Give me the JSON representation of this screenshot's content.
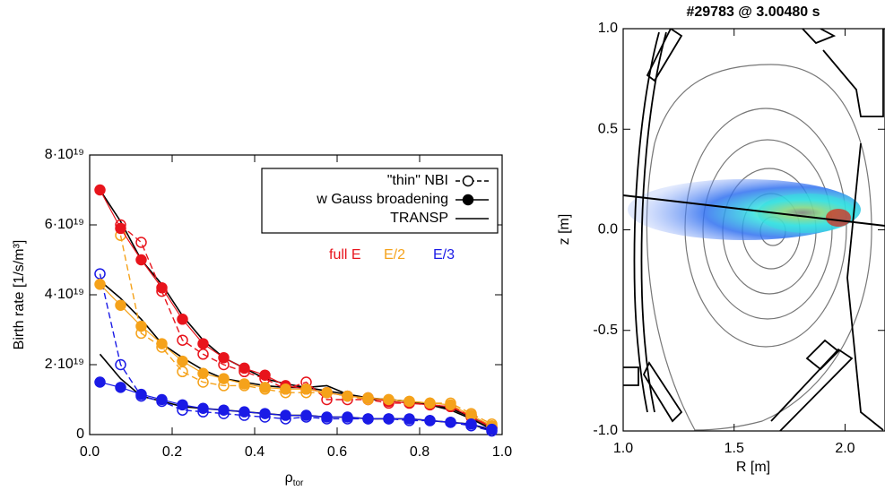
{
  "chart_data": [
    {
      "type": "line",
      "ylabel": "Birth rate [1/s/m³]",
      "xlabel": "ρ",
      "xlabel_sub": "tor",
      "xlim": [
        0,
        1
      ],
      "ylim": [
        0,
        8e+19
      ],
      "xticks": [
        {
          "value": 0,
          "label": "0.0"
        },
        0.2,
        0.4,
        0.6,
        0.8,
        {
          "value": 1,
          "label": "1.0"
        }
      ],
      "yticks": [
        0,
        {
          "value": 2e+19,
          "label": "2·10¹⁹"
        },
        {
          "value": 4e+19,
          "label": "4·10¹⁹"
        },
        {
          "value": 6e+19,
          "label": "6·10¹⁹"
        },
        {
          "value": 8e+19,
          "label": "8·10¹⁹"
        }
      ],
      "legend": [
        {
          "label": "\"thin\" NBI",
          "style": "open"
        },
        {
          "label": "w Gauss broadening",
          "style": "filled"
        },
        {
          "label": "TRANSP",
          "style": "line"
        }
      ],
      "energy_labels": [
        {
          "label": "full E",
          "color": "#e8141c"
        },
        {
          "label": "E/2",
          "color": "#f5a21a"
        },
        {
          "label": "E/3",
          "color": "#1a1ae6"
        }
      ],
      "x": [
        0.025,
        0.075,
        0.125,
        0.175,
        0.225,
        0.275,
        0.325,
        0.375,
        0.425,
        0.475,
        0.525,
        0.575,
        0.625,
        0.675,
        0.725,
        0.775,
        0.825,
        0.875,
        0.925,
        0.975
      ],
      "series": [
        {
          "style": "line",
          "color": "#000000",
          "values": [
            7e+19,
            6.1e+19,
            5e+19,
            4.3e+19,
            3.4e+19,
            2.7e+19,
            2.2e+19,
            1.9e+19,
            1.6e+19,
            1.45e+19,
            1.35e+19,
            1.25e+19,
            1.15e+19,
            1.05e+19,
            1e+19,
            9.5e+18,
            8.5e+18,
            7e+18,
            4.5e+18,
            1.5e+18
          ]
        },
        {
          "style": "line",
          "color": "#000000",
          "values": [
            4.4e+19,
            3.9e+19,
            3.3e+19,
            2.6e+19,
            2.2e+19,
            1.85e+19,
            1.6e+19,
            1.5e+19,
            1.4e+19,
            1.35e+19,
            1.35e+19,
            1.4e+19,
            1.15e+19,
            1e+19,
            1e+19,
            9.5e+18,
            8.5e+18,
            7.5e+18,
            5e+18,
            2e+18
          ]
        },
        {
          "style": "line",
          "color": "#000000",
          "values": [
            2.3e+19,
            1.6e+19,
            1.1e+19,
            9.5e+18,
            8e+18,
            7.5e+18,
            7e+18,
            6.5e+18,
            6e+18,
            5.5e+18,
            5.5e+18,
            5e+18,
            5e+18,
            4.5e+18,
            4.5e+18,
            4.5e+18,
            4e+18,
            3.5e+18,
            3e+18,
            1e+18
          ]
        },
        {
          "style": "open",
          "color": "#e8141c",
          "values": [
            null,
            6e+19,
            5.5e+19,
            4.1e+19,
            2.7e+19,
            2.3e+19,
            2e+19,
            1.8e+19,
            1.6e+19,
            1.3e+19,
            1.5e+19,
            1e+19,
            1e+19,
            1e+19,
            9e+18,
            9e+18,
            8.5e+18,
            8e+18,
            5.5e+18,
            2e+18
          ]
        },
        {
          "style": "open",
          "color": "#f5a21a",
          "values": [
            null,
            5.7e+19,
            2.9e+19,
            2.5e+19,
            1.8e+19,
            1.5e+19,
            1.4e+19,
            1.4e+19,
            1.3e+19,
            1.2e+19,
            1.2e+19,
            1.2e+19,
            1.1e+19,
            1e+19,
            1e+19,
            9.5e+18,
            9e+18,
            9e+18,
            6e+18,
            3e+18
          ]
        },
        {
          "style": "open",
          "color": "#1a1ae6",
          "values": [
            4.6e+19,
            2e+19,
            1.1e+19,
            9.5e+18,
            7e+18,
            6.5e+18,
            6e+18,
            5.5e+18,
            5e+18,
            4.5e+18,
            5e+18,
            4.5e+18,
            4.5e+18,
            4.5e+18,
            4.5e+18,
            4e+18,
            4e+18,
            3.5e+18,
            2.5e+18,
            1e+18
          ]
        },
        {
          "style": "filled",
          "color": "#e8141c",
          "values": [
            7e+19,
            5.9e+19,
            5e+19,
            4.2e+19,
            3.3e+19,
            2.6e+19,
            2.2e+19,
            1.9e+19,
            1.7e+19,
            1.4e+19,
            1.3e+19,
            1.2e+19,
            1.1e+19,
            1.05e+19,
            9.5e+18,
            9e+18,
            8.5e+18,
            8e+18,
            5e+18,
            2e+18
          ]
        },
        {
          "style": "filled",
          "color": "#f5a21a",
          "values": [
            4.3e+19,
            3.7e+19,
            3.1e+19,
            2.6e+19,
            2.1e+19,
            1.75e+19,
            1.6e+19,
            1.45e+19,
            1.35e+19,
            1.3e+19,
            1.3e+19,
            1.2e+19,
            1.1e+19,
            1.05e+19,
            1e+19,
            9.5e+18,
            9e+18,
            8.5e+18,
            5.5e+18,
            2.5e+18
          ]
        },
        {
          "style": "filled",
          "color": "#1a1ae6",
          "values": [
            1.5e+19,
            1.35e+19,
            1.15e+19,
            1e+19,
            8.5e+18,
            7.5e+18,
            7e+18,
            6.5e+18,
            6e+18,
            5.5e+18,
            5.5e+18,
            5e+18,
            5e+18,
            4.5e+18,
            4.5e+18,
            4.5e+18,
            4e+18,
            3.5e+18,
            3e+18,
            1.5e+18
          ]
        }
      ]
    },
    {
      "type": "contour",
      "title": "#29783 @ 3.00480 s",
      "xlabel": "R [m]",
      "ylabel": "z [m]",
      "xlim": [
        1.0,
        2.18
      ],
      "ylim": [
        -1.0,
        1.0
      ],
      "xticks": [
        {
          "value": 1.0,
          "label": "1.0"
        },
        1.5,
        {
          "value": 2.0,
          "label": "2.0"
        }
      ],
      "yticks": [
        {
          "value": -1.0,
          "label": "-1.0"
        },
        -0.5,
        {
          "value": 0.0,
          "label": "0.0"
        },
        0.5,
        {
          "value": 1.0,
          "label": "1.0"
        }
      ]
    }
  ]
}
